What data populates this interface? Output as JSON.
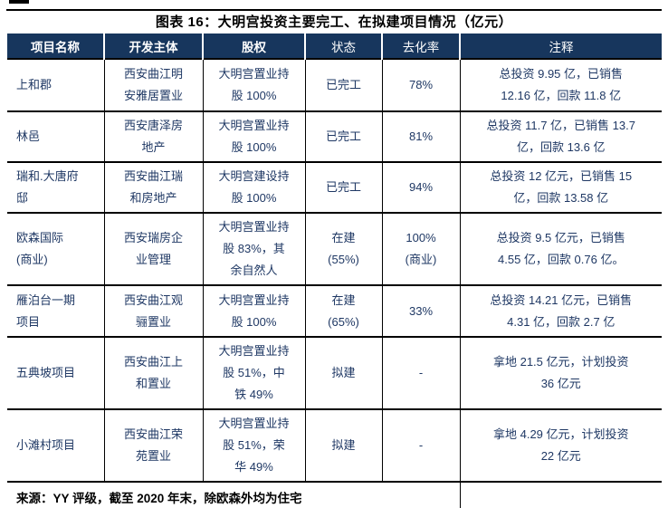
{
  "figure": {
    "title": "图表 16：大明宫投资主要完工、在拟建项目情况（亿元）"
  },
  "table": {
    "headers": [
      "项目名称",
      "开发主体",
      "股权",
      "状态",
      "去化率",
      "注释"
    ],
    "rows": [
      {
        "name": "上和郡",
        "developer": "西安曲江明\n安雅居置业",
        "equity": "大明宫置业持\n股 100%",
        "status": "已完工",
        "rate": "78%",
        "note": "总投资 9.95 亿，已销售\n12.16 亿，回款 11.8 亿"
      },
      {
        "name": "林邑",
        "developer": "西安唐泽房\n地产",
        "equity": "大明宫置业持\n股 100%",
        "status": "已完工",
        "rate": "81%",
        "note": "总投资 11.7 亿，已销售 13.7\n亿，回款 13.6 亿"
      },
      {
        "name": "瑞和.大唐府\n邸",
        "developer": "西安曲江瑞\n和房地产",
        "equity": "大明宫建设持\n股 100%",
        "status": "已完工",
        "rate": "94%",
        "note": "总投资 12 亿元，已销售 15\n亿，回款 13.58 亿"
      },
      {
        "name": "欧森国际\n(商业)",
        "developer": "西安瑞房企\n业管理",
        "equity": "大明宫置业持\n股 83%，其\n余自然人",
        "status": "在建\n(55%)",
        "rate": "100%\n(商业)",
        "note": "总投资 9.5 亿元，已销售\n4.55 亿，回款 0.76 亿。"
      },
      {
        "name": "雁泊台一期\n项目",
        "developer": "西安曲江观\n骊置业",
        "equity": "大明宫置业持\n股 100%",
        "status": "在建\n(65%)",
        "rate": "33%",
        "note": "总投资 14.21 亿元，已销售\n4.31 亿，回款 2.7 亿"
      },
      {
        "name": "五典坡项目",
        "developer": "西安曲江上\n和置业",
        "equity": "大明宫置业持\n股 51%，中\n铁 49%",
        "status": "拟建",
        "rate": "-",
        "note": "拿地 21.5 亿元，计划投资\n36 亿元"
      },
      {
        "name": "小滩村项目",
        "developer": "西安曲江荣\n苑置业",
        "equity": "大明宫置业持\n股 51%，荣\n华 49%",
        "status": "拟建",
        "rate": "-",
        "note": "拿地 4.29 亿元，计划投资\n22 亿元"
      }
    ],
    "source": "来源：YY 评级，截至 2020 年末，除欧森外均为住宅"
  },
  "colors": {
    "header_bg": "#17365D",
    "header_text": "#FFFFFF",
    "body_text": "#1F3864",
    "border": "#000000"
  }
}
